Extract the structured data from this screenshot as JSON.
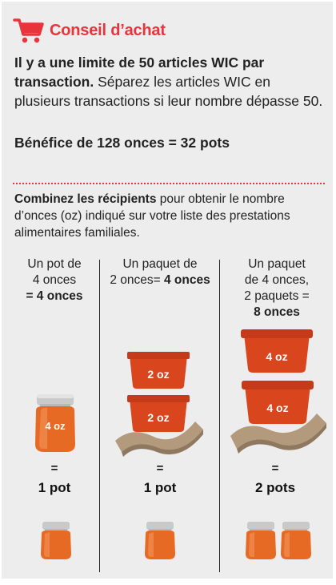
{
  "header": {
    "title": "Conseil d’achat",
    "icon": "shopping-cart-icon",
    "accent": "#e8343b"
  },
  "intro": {
    "bold": "Il y a une limite de 50 articles WIC par transaction.",
    "text": " Séparez les articles WIC en plusieurs transactions si leur nombre dépasse 50."
  },
  "benefit": "Bénéfice de 128 onces = 32 pots",
  "combine": {
    "bold": "Combinez les récipients",
    "text": " pour obtenir le nombre d’onces (oz) indiqué sur votre liste des prestations alimentaires familiales."
  },
  "columns": [
    {
      "line1": "Un pot de",
      "line2": "4 onces",
      "line3_bold": "= 4 onces",
      "container_label": "4 oz",
      "equals": "=",
      "result": "1 pot"
    },
    {
      "line1": "Un paquet de",
      "line2": "2 onces=",
      "line2_bold": " 4 onces",
      "container_label": "2 oz",
      "equals": "=",
      "result": "1 pot"
    },
    {
      "line1": "Un paquet",
      "line2": "de 4 onces,",
      "line3": "2 paquets =",
      "line4_bold": "8 onces",
      "container_label": "4 oz",
      "equals": "=",
      "result": "2 pots"
    }
  ]
}
